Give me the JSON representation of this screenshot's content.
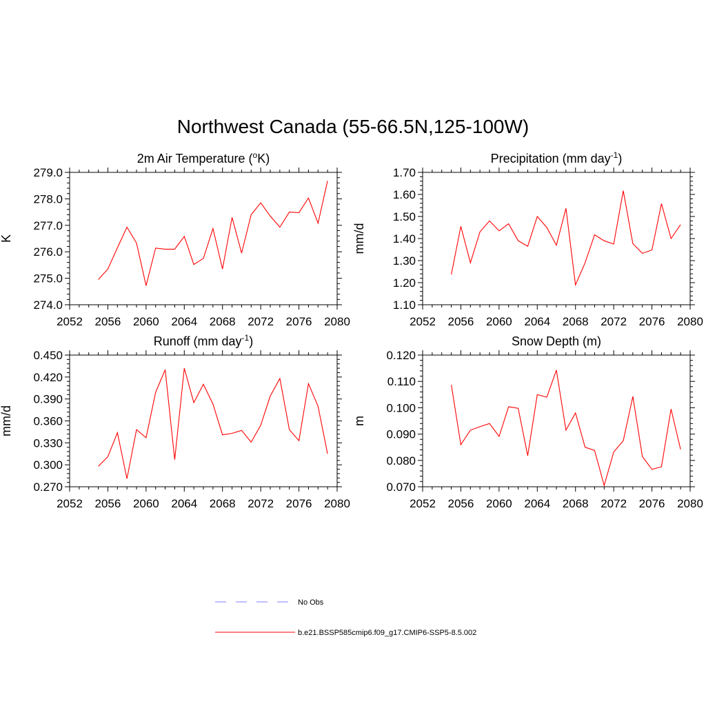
{
  "title": "Northwest Canada (55-66.5N,125-100W)",
  "colors": {
    "model": "#ff0000",
    "obs": "#9999ff",
    "axis": "#000000"
  },
  "legend": {
    "obs_label": "No Obs",
    "model_label": "b.e21.BSSP585cmip6.f09_g17.CMIP6-SSP5-8.5.002"
  },
  "chart_data": [
    {
      "id": "temp",
      "type": "line",
      "title": "2m Air Temperature (",
      "title_sup": "o",
      "title_after": "K)",
      "title_sup_after": "",
      "ylabel": "K",
      "xlim": [
        2052,
        2080
      ],
      "ylim": [
        274.0,
        279.0
      ],
      "xticks": [
        2052,
        2056,
        2060,
        2064,
        2068,
        2072,
        2076,
        2080
      ],
      "yticks": [
        274.0,
        275.0,
        276.0,
        277.0,
        278.0,
        279.0
      ],
      "ydecimals": 1,
      "x": [
        2055,
        2056,
        2057,
        2058,
        2059,
        2060,
        2061,
        2062,
        2063,
        2064,
        2065,
        2066,
        2067,
        2068,
        2069,
        2070,
        2071,
        2072,
        2073,
        2074,
        2075,
        2076,
        2077,
        2078,
        2079
      ],
      "series": [
        {
          "values": [
            274.95,
            275.35,
            276.15,
            276.93,
            276.33,
            274.72,
            276.14,
            276.1,
            276.1,
            276.58,
            275.52,
            275.75,
            276.88,
            275.35,
            277.3,
            275.95,
            277.4,
            277.85,
            277.35,
            276.93,
            277.5,
            277.48,
            278.03,
            277.08,
            278.68
          ]
        }
      ]
    },
    {
      "id": "precip",
      "type": "line",
      "title": "Precipitation (mm day",
      "title_sup": "-1",
      "title_after": ")",
      "ylabel": "mm/d",
      "xlim": [
        2052,
        2080
      ],
      "ylim": [
        1.1,
        1.7
      ],
      "xticks": [
        2052,
        2056,
        2060,
        2064,
        2068,
        2072,
        2076,
        2080
      ],
      "yticks": [
        1.1,
        1.2,
        1.3,
        1.4,
        1.5,
        1.6,
        1.7
      ],
      "ydecimals": 2,
      "x": [
        2055,
        2056,
        2057,
        2058,
        2059,
        2060,
        2061,
        2062,
        2063,
        2064,
        2065,
        2066,
        2067,
        2068,
        2069,
        2070,
        2071,
        2072,
        2073,
        2074,
        2075,
        2076,
        2077,
        2078,
        2079
      ],
      "series": [
        {
          "values": [
            1.237,
            1.455,
            1.29,
            1.43,
            1.48,
            1.435,
            1.467,
            1.39,
            1.365,
            1.5,
            1.45,
            1.37,
            1.537,
            1.19,
            1.29,
            1.417,
            1.39,
            1.375,
            1.617,
            1.377,
            1.333,
            1.348,
            1.558,
            1.4,
            1.463
          ]
        }
      ]
    },
    {
      "id": "runoff",
      "type": "line",
      "title": "Runoff (mm day",
      "title_sup": "-1",
      "title_after": ")",
      "ylabel": "mm/d",
      "xlim": [
        2052,
        2080
      ],
      "ylim": [
        0.27,
        0.45
      ],
      "xticks": [
        2052,
        2056,
        2060,
        2064,
        2068,
        2072,
        2076,
        2080
      ],
      "yticks": [
        0.27,
        0.3,
        0.33,
        0.36,
        0.39,
        0.42,
        0.45
      ],
      "ydecimals": 3,
      "x": [
        2055,
        2056,
        2057,
        2058,
        2059,
        2060,
        2061,
        2062,
        2063,
        2064,
        2065,
        2066,
        2067,
        2068,
        2069,
        2070,
        2071,
        2072,
        2073,
        2074,
        2075,
        2076,
        2077,
        2078,
        2079
      ],
      "series": [
        {
          "values": [
            0.298,
            0.311,
            0.344,
            0.281,
            0.348,
            0.337,
            0.399,
            0.43,
            0.307,
            0.432,
            0.385,
            0.41,
            0.383,
            0.341,
            0.343,
            0.347,
            0.331,
            0.354,
            0.394,
            0.418,
            0.348,
            0.333,
            0.411,
            0.38,
            0.315
          ]
        }
      ]
    },
    {
      "id": "snow",
      "type": "line",
      "title": "Snow Depth (m)",
      "title_sup": "",
      "title_after": "",
      "ylabel": "m",
      "xlim": [
        2052,
        2080
      ],
      "ylim": [
        0.07,
        0.12
      ],
      "xticks": [
        2052,
        2056,
        2060,
        2064,
        2068,
        2072,
        2076,
        2080
      ],
      "yticks": [
        0.07,
        0.08,
        0.09,
        0.1,
        0.11,
        0.12
      ],
      "ydecimals": 3,
      "x": [
        2055,
        2056,
        2057,
        2058,
        2059,
        2060,
        2061,
        2062,
        2063,
        2064,
        2065,
        2066,
        2067,
        2068,
        2069,
        2070,
        2071,
        2072,
        2073,
        2074,
        2075,
        2076,
        2077,
        2078,
        2079
      ],
      "series": [
        {
          "values": [
            0.1087,
            0.086,
            0.0915,
            0.0928,
            0.094,
            0.0891,
            0.1004,
            0.0998,
            0.0818,
            0.105,
            0.104,
            0.1143,
            0.0915,
            0.098,
            0.085,
            0.0838,
            0.0705,
            0.0832,
            0.0875,
            0.1043,
            0.0815,
            0.0766,
            0.0776,
            0.0995,
            0.0842
          ]
        }
      ]
    }
  ]
}
